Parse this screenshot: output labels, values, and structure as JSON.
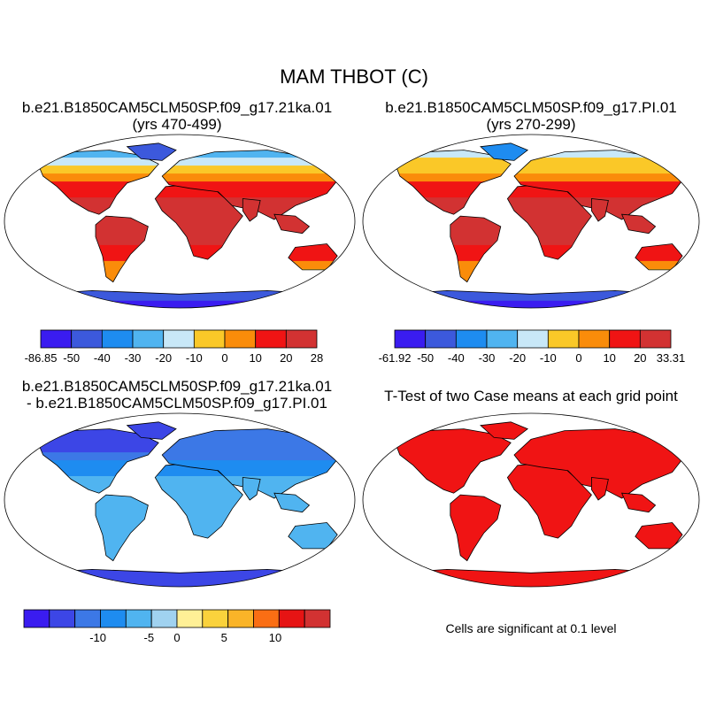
{
  "title": "MAM THBOT (C)",
  "panels": [
    {
      "id": "case",
      "title_line1": "b.e21.B1850CAM5CLM50SP.f09_g17.21ka.01",
      "title_line2": "(yrs 470-499)",
      "colorbar": {
        "colors": [
          "#3a1cf0",
          "#3c59dc",
          "#1e8cf0",
          "#50b4f0",
          "#c8e8f8",
          "#fac828",
          "#fa8c0a",
          "#f01414",
          "#d23232"
        ],
        "labels": [
          "-86.85",
          "-50",
          "-40",
          "-30",
          "-20",
          "-10",
          "0",
          "10",
          "20",
          "28"
        ]
      }
    },
    {
      "id": "control",
      "title_line1": "b.e21.B1850CAM5CLM50SP.f09_g17.PI.01",
      "title_line2": "(yrs 270-299)",
      "colorbar": {
        "colors": [
          "#3a1cf0",
          "#3c59dc",
          "#1e8cf0",
          "#50b4f0",
          "#c8e8f8",
          "#fac828",
          "#fa8c0a",
          "#f01414",
          "#d23232"
        ],
        "labels": [
          "-61.92",
          "-50",
          "-40",
          "-30",
          "-20",
          "-10",
          "0",
          "10",
          "20",
          "33.31"
        ]
      }
    },
    {
      "id": "difference",
      "title_line1": "b.e21.B1850CAM5CLM50SP.f09_g17.21ka.01",
      "title_line2": "- b.e21.B1850CAM5CLM50SP.f09_g17.PI.01",
      "colorbar": {
        "colors": [
          "#3a1cf0",
          "#3c46e6",
          "#3c78e6",
          "#1e8cf0",
          "#50b4f0",
          "#a0d2f0",
          "#fff096",
          "#fad23c",
          "#fab428",
          "#fa6e14",
          "#e61414",
          "#d23232"
        ],
        "labels": [
          "-10",
          "-5",
          "0",
          "5",
          "10"
        ]
      }
    },
    {
      "id": "ttest",
      "title_line1": "T-Test of two Case means at each grid point",
      "note": "Cells are significant at 0.1 level"
    }
  ],
  "colors": {
    "ocean": "#ffffff",
    "coast": "#000000",
    "significant": "#f01414"
  }
}
